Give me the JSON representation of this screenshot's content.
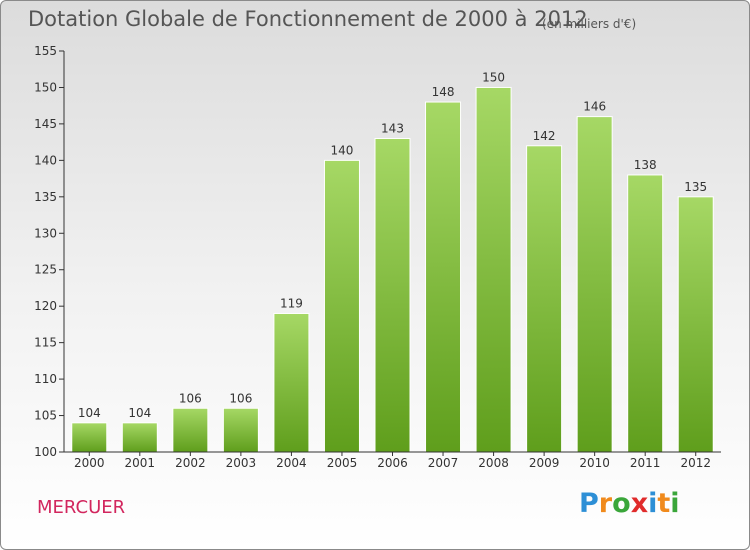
{
  "title": "Dotation Globale de Fonctionnement de 2000 à 2012",
  "unit": "(en milliers d'€)",
  "place": "MERCUER",
  "logo": {
    "letters": [
      "P",
      "r",
      "o",
      "x",
      "i",
      "t",
      "i"
    ],
    "colors": [
      "#2d8fd6",
      "#f08a1c",
      "#3aa63a",
      "#e02b2b",
      "#2d8fd6",
      "#f08a1c",
      "#3aa63a"
    ]
  },
  "colors": {
    "bar_light": "#a6d865",
    "bar_dark": "#5f9e1c",
    "axis": "#333333",
    "grid": "#cccccc"
  },
  "chart_data": {
    "type": "bar",
    "categories": [
      "2000",
      "2001",
      "2002",
      "2003",
      "2004",
      "2005",
      "2006",
      "2007",
      "2008",
      "2009",
      "2010",
      "2011",
      "2012"
    ],
    "values": [
      104,
      104,
      106,
      106,
      119,
      140,
      143,
      148,
      150,
      142,
      146,
      138,
      135
    ],
    "ylim": [
      100,
      155
    ],
    "yticks": [
      100,
      105,
      110,
      115,
      120,
      125,
      130,
      135,
      140,
      145,
      150,
      155
    ],
    "grid": false,
    "legend": "none"
  }
}
